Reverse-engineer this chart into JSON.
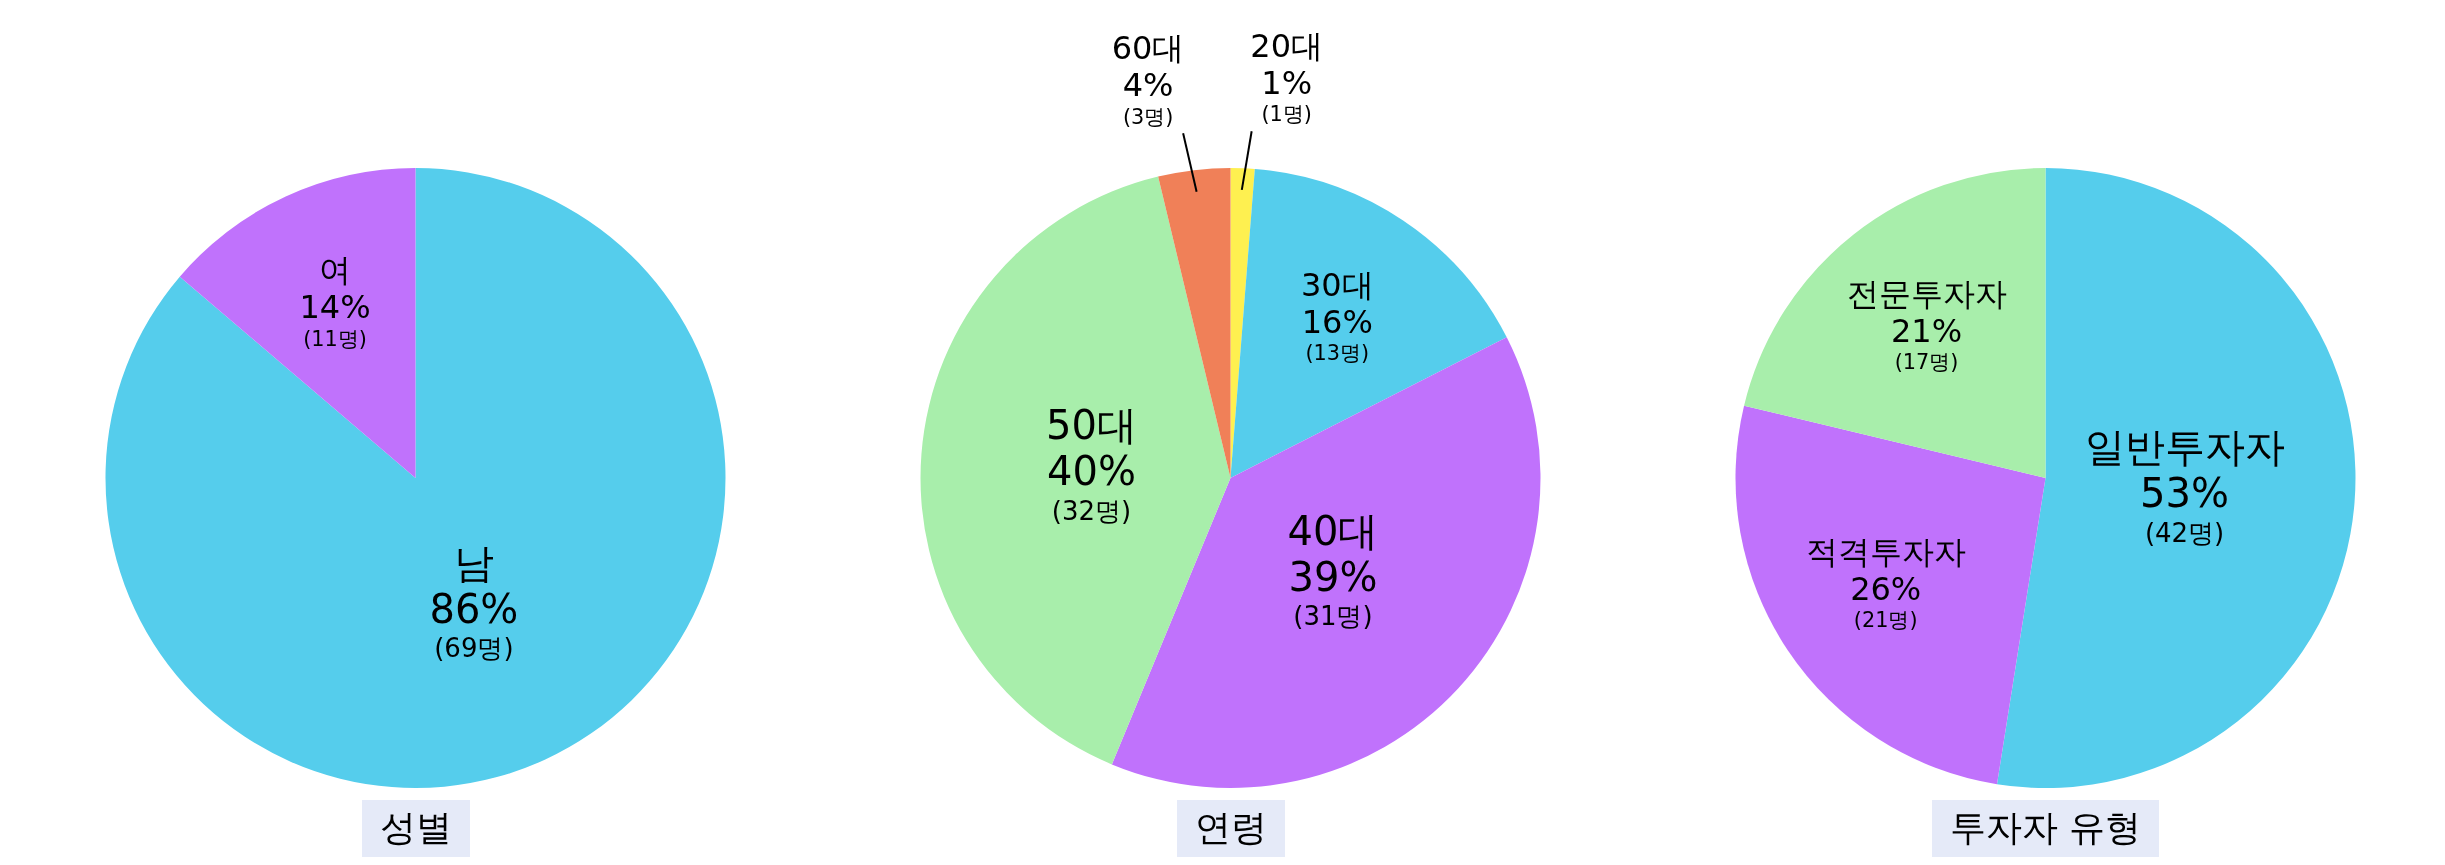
{
  "chart_data": [
    {
      "type": "pie",
      "title": "성별",
      "categories": [
        "남",
        "여"
      ],
      "values": [
        69,
        11
      ],
      "value_labels": [
        "86%\n(69명)",
        "14%\n(11명)"
      ],
      "colors": [
        "#55cdec",
        "#c072fc"
      ],
      "legend": false
    },
    {
      "type": "pie",
      "title": "연령",
      "categories": [
        "20대",
        "30대",
        "40대",
        "50대",
        "60대"
      ],
      "values": [
        1,
        13,
        31,
        32,
        3
      ],
      "value_labels": [
        "1%\n(1명)",
        "16%\n(13명)",
        "39%\n(31명)",
        "40%\n(32명)",
        "4%\n(3명)"
      ],
      "colors": [
        "#fef050",
        "#55cdec",
        "#c072fc",
        "#a8eeab",
        "#f08058"
      ],
      "legend": false
    },
    {
      "type": "pie",
      "title": "투자자 유형",
      "categories": [
        "일반투자자",
        "적격투자자",
        "전문투자자"
      ],
      "values": [
        42,
        21,
        17
      ],
      "value_labels": [
        "53%\n(42명)",
        "26%\n(21명)",
        "21%\n(17명)"
      ],
      "colors": [
        "#55cdec",
        "#c072fc",
        "#a8eeab"
      ],
      "legend": false
    }
  ]
}
